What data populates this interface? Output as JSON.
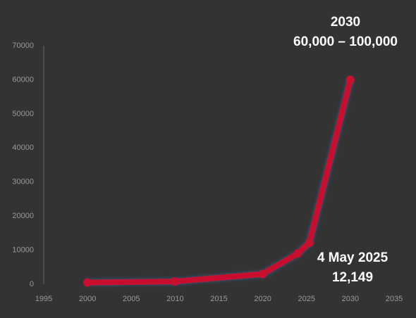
{
  "chart_data": {
    "type": "line",
    "x": [
      2000,
      2010,
      2020,
      2024,
      2025.33,
      2030
    ],
    "values": [
      500,
      800,
      3000,
      9000,
      12149,
      60000
    ],
    "color": "#c8102e",
    "xlim": [
      1995,
      2035
    ],
    "xticks": [
      1995,
      2000,
      2005,
      2010,
      2015,
      2020,
      2025,
      2030,
      2035
    ],
    "ylim": [
      0,
      70000
    ],
    "yticks": [
      0,
      10000,
      20000,
      30000,
      40000,
      50000,
      60000,
      70000
    ],
    "grid": false,
    "annotations": [
      "2030",
      "60,000 – 100,000",
      "4 May 2025",
      "12,149"
    ]
  }
}
